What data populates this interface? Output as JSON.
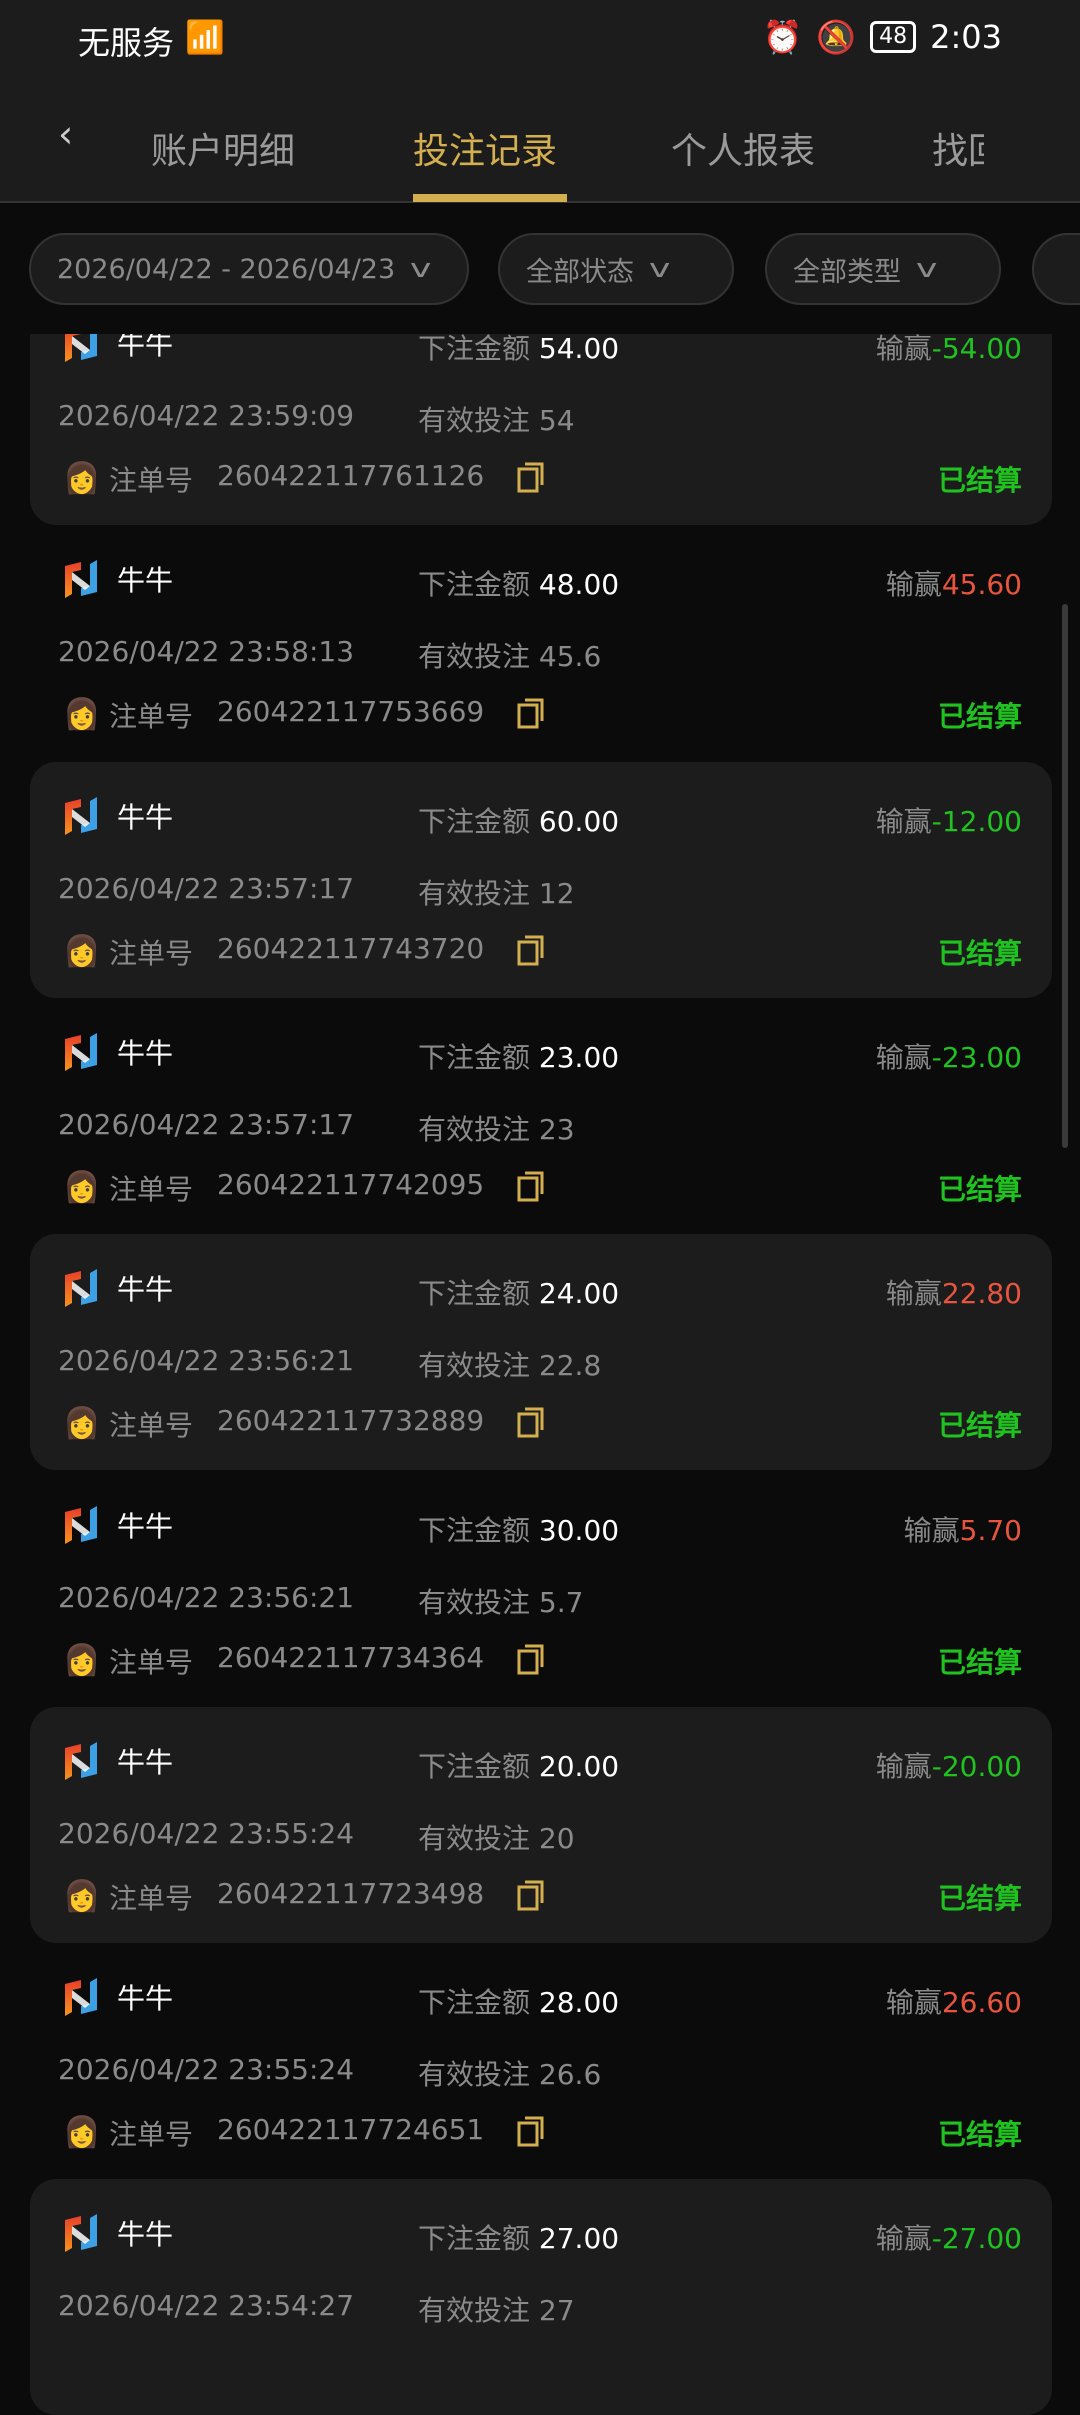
{
  "status_bar": {
    "carrier": "无服务",
    "battery": "48",
    "time": "2:03"
  },
  "tabs": [
    {
      "label": "账户明细"
    },
    {
      "label": "投注记录",
      "active": true
    },
    {
      "label": "个人报表"
    },
    {
      "label": "找回"
    }
  ],
  "filters": {
    "date_range": "2026/04/22 - 2026/04/23",
    "status": "全部状态",
    "type": "全部类型"
  },
  "labels": {
    "bet_amount": "下注金额",
    "win_loss": "输赢",
    "valid_bet": "有效投注",
    "order_no": "注单号"
  },
  "colors": {
    "accent": "#d4af4f",
    "win": "#e8553f",
    "loss": "#1fc21f",
    "settled": "#1fc21f"
  },
  "records": [
    {
      "game": "牛牛",
      "bet": "54.00",
      "win": "-54.00",
      "time": "2026/04/22 23:59:09",
      "valid": "54",
      "order": "260422117761126",
      "status": "已结算"
    },
    {
      "game": "牛牛",
      "bet": "48.00",
      "win": "45.60",
      "time": "2026/04/22 23:58:13",
      "valid": "45.6",
      "order": "260422117753669",
      "status": "已结算"
    },
    {
      "game": "牛牛",
      "bet": "60.00",
      "win": "-12.00",
      "time": "2026/04/22 23:57:17",
      "valid": "12",
      "order": "260422117743720",
      "status": "已结算"
    },
    {
      "game": "牛牛",
      "bet": "23.00",
      "win": "-23.00",
      "time": "2026/04/22 23:57:17",
      "valid": "23",
      "order": "260422117742095",
      "status": "已结算"
    },
    {
      "game": "牛牛",
      "bet": "24.00",
      "win": "22.80",
      "time": "2026/04/22 23:56:21",
      "valid": "22.8",
      "order": "260422117732889",
      "status": "已结算"
    },
    {
      "game": "牛牛",
      "bet": "30.00",
      "win": "5.70",
      "time": "2026/04/22 23:56:21",
      "valid": "5.7",
      "order": "260422117734364",
      "status": "已结算"
    },
    {
      "game": "牛牛",
      "bet": "20.00",
      "win": "-20.00",
      "time": "2026/04/22 23:55:24",
      "valid": "20",
      "order": "260422117723498",
      "status": "已结算"
    },
    {
      "game": "牛牛",
      "bet": "28.00",
      "win": "26.60",
      "time": "2026/04/22 23:55:24",
      "valid": "26.6",
      "order": "260422117724651",
      "status": "已结算"
    },
    {
      "game": "牛牛",
      "bet": "27.00",
      "win": "-27.00",
      "time": "2026/04/22 23:54:27",
      "valid": "27",
      "order": "",
      "status": ""
    }
  ]
}
